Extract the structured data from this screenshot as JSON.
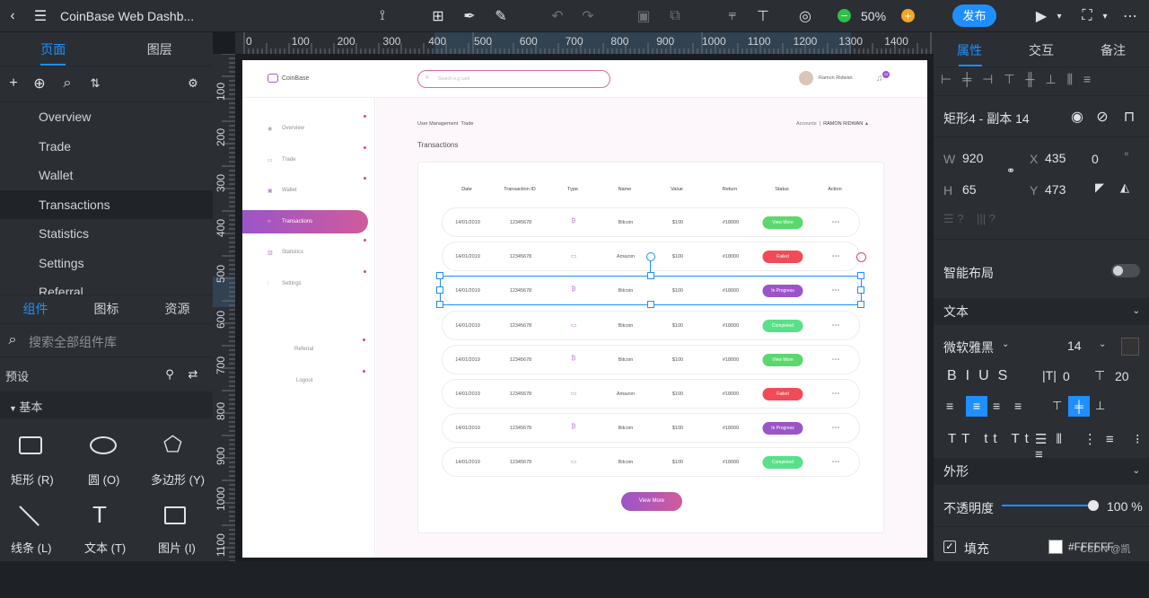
{
  "app": {
    "title": "CoinBase Web Dashb...",
    "zoom": "50%",
    "publish": "发布"
  },
  "left": {
    "tabs": [
      "页面",
      "图层"
    ],
    "pages": [
      "Overview",
      "Trade",
      "Wallet",
      "Transactions",
      "Statistics",
      "Settings",
      "Referral"
    ],
    "comp_tabs": [
      "组件",
      "图标",
      "资源"
    ],
    "search_placeholder": "搜索全部组件库",
    "preset": "预设",
    "basic": "基本",
    "shapes": [
      "矩形 (R)",
      "圆 (O)",
      "多边形 (Y)",
      "线条 (L)",
      "文本 (T)",
      "图片 (I)"
    ]
  },
  "ruler_x": [
    "0",
    "100",
    "200",
    "300",
    "400",
    "500",
    "600",
    "700",
    "800",
    "900",
    "1000",
    "1100",
    "1200",
    "1300",
    "1400"
  ],
  "ruler_y": [
    "100",
    "200",
    "300",
    "400",
    "500",
    "600",
    "700",
    "800",
    "900",
    "1000",
    "1100"
  ],
  "dash": {
    "brand": "CoinBase",
    "search_placeholder": "Search e.g card",
    "user": "Ramon Ridwan",
    "notif": "24",
    "nav": [
      "Overview",
      "Trade",
      "Wallet",
      "Transactions",
      "Statistics",
      "Settings",
      "Referral",
      "Logout"
    ],
    "crumb1": "User Management",
    "crumb2": "Trade",
    "accounts": "Accounts",
    "account_user": "RAMON RIDWAN",
    "section": "Transactions",
    "headers": [
      "Date",
      "Transaction ID",
      "Type",
      "Name",
      "Value",
      "Return",
      "Status",
      "Action"
    ],
    "rows": [
      {
        "date": "14/01/2019",
        "id": "12345678",
        "name": "Bitcoin",
        "value": "$100",
        "ret": "#18000",
        "status": "View More",
        "type": "coin"
      },
      {
        "date": "14/01/2019",
        "id": "12345678",
        "name": "Amazon",
        "value": "$100",
        "ret": "#18000",
        "status": "Failed",
        "type": "card"
      },
      {
        "date": "14/01/2019",
        "id": "12345678",
        "name": "Bitcoin",
        "value": "$100",
        "ret": "#18000",
        "status": "In Progress",
        "type": "coin"
      },
      {
        "date": "14/01/2019",
        "id": "12345678",
        "name": "Bitcoin",
        "value": "$100",
        "ret": "#18000",
        "status": "Completed",
        "type": "card"
      },
      {
        "date": "14/01/2019",
        "id": "12345678",
        "name": "Bitcoin",
        "value": "$100",
        "ret": "#18000",
        "status": "View More",
        "type": "coin"
      },
      {
        "date": "14/01/2019",
        "id": "12345678",
        "name": "Amazon",
        "value": "$100",
        "ret": "#18000",
        "status": "Failed",
        "type": "card"
      },
      {
        "date": "14/01/2019",
        "id": "12345678",
        "name": "Bitcoin",
        "value": "$100",
        "ret": "#18000",
        "status": "In Progress",
        "type": "coin"
      },
      {
        "date": "14/01/2019",
        "id": "12345678",
        "name": "Bitcoin",
        "value": "$100",
        "ret": "#18000",
        "status": "Completed",
        "type": "card"
      }
    ],
    "view_more": "View More"
  },
  "right": {
    "tabs": [
      "属性",
      "交互",
      "备注"
    ],
    "layer_name": "矩形4 - 副本 14",
    "w_label": "W",
    "w": "920",
    "h_label": "H",
    "h": "65",
    "x_label": "X",
    "x": "435",
    "y_label": "Y",
    "y": "473",
    "rot": "0",
    "deg": "°",
    "smart": "智能布局",
    "text_sec": "文本",
    "font": "微软雅黑",
    "size": "14",
    "letter": "0",
    "line": "20",
    "appearance": "外形",
    "opacity_label": "不透明度",
    "opacity": "100 %",
    "fill": "填充",
    "fill_hex": "#FFFFFF",
    "watermark": "CSDN @凯"
  },
  "colors": {
    "accent": "#1f8fff",
    "green": "#5ad86e",
    "red": "#f24b58",
    "purple": "#9b55c8",
    "teal": "#59e08a"
  }
}
